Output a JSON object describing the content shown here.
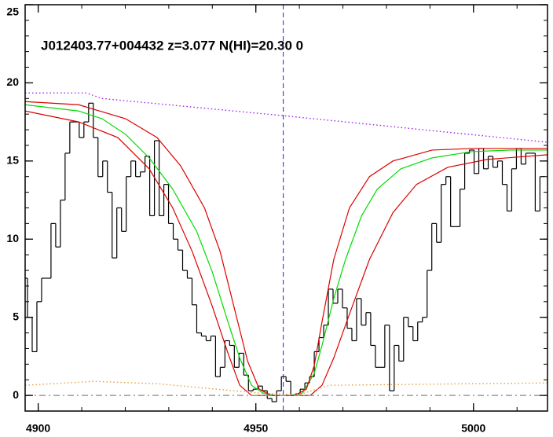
{
  "chart_data": {
    "type": "line",
    "title": "J012403.77+004432 z=3.077 N(HI)=20.30 0",
    "xlim": [
      4897,
      5017
    ],
    "ylim": [
      -1,
      25
    ],
    "xticks": [
      4900,
      4950,
      5000
    ],
    "yticks": [
      0,
      5,
      10,
      15,
      20,
      25
    ],
    "xticks_minor": [
      4900,
      4910,
      4920,
      4930,
      4940,
      4950,
      4960,
      4970,
      4980,
      4990,
      5000,
      5010
    ],
    "yticks_minor": [
      0,
      1,
      2,
      3,
      4,
      5,
      6,
      7,
      8,
      9,
      10,
      11,
      12,
      13,
      14,
      15,
      16,
      17,
      18,
      19,
      20,
      21,
      22,
      23,
      24,
      25
    ],
    "vline": {
      "x": 4956.3,
      "color": "#2020e0",
      "style": "dashed"
    },
    "series": [
      {
        "style": "step",
        "color": "#000000",
        "x": [
          4897,
          4898.08,
          4899.16,
          4900.24,
          4901.32,
          4902.4,
          4903.48,
          4904.56,
          4905.64,
          4906.72,
          4907.8,
          4908.88,
          4909.96,
          4911.04,
          4912.12,
          4913.2,
          4914.28,
          4915.36,
          4916.44,
          4917.52,
          4918.6,
          4919.68,
          4920.76,
          4921.84,
          4922.92,
          4924,
          4925.08,
          4926.16,
          4927.24,
          4928.32,
          4929.4,
          4930.48,
          4931.56,
          4932.64,
          4933.72,
          4934.8,
          4935.88,
          4936.96,
          4938.04,
          4939.12,
          4940.2,
          4941.28,
          4942.36,
          4943.44,
          4944.52,
          4945.6,
          4946.68,
          4947.76,
          4948.84,
          4949.92,
          4951,
          4952.08,
          4953.16,
          4954.24,
          4955.32,
          4956.4,
          4957.48,
          4958.56,
          4959.64,
          4960.72,
          4961.8,
          4962.88,
          4963.96,
          4965.04,
          4966.12,
          4967.2,
          4968.28,
          4969.36,
          4970.44,
          4971.52,
          4972.6,
          4973.68,
          4974.76,
          4975.84,
          4976.92,
          4978,
          4979.08,
          4980.16,
          4981.24,
          4982.32,
          4983.4,
          4984.48,
          4985.56,
          4986.64,
          4987.72,
          4988.8,
          4989.88,
          4990.96,
          4992.04,
          4993.12,
          4994.2,
          4995.28,
          4996.36,
          4997.44,
          4998.52,
          4999.6,
          5000.68,
          5001.76,
          5002.84,
          5003.92,
          5005,
          5006.08,
          5007.16,
          5008.24,
          5009.32,
          5010.4,
          5011.48,
          5012.56,
          5013.64,
          5014.72,
          5015.8
        ],
        "values": [
          7.5,
          5.0,
          2.8,
          6.0,
          7.5,
          7.5,
          11.0,
          9.5,
          12.5,
          15.5,
          17.5,
          17.5,
          16.5,
          17.5,
          18.7,
          16.5,
          14.0,
          15.0,
          13.0,
          8.8,
          12.0,
          10.5,
          14.0,
          15.0,
          14.0,
          14.3,
          15.3,
          11.5,
          16.3,
          11.5,
          13.5,
          11.0,
          10.0,
          9.3,
          8.0,
          7.5,
          5.8,
          4.0,
          3.8,
          3.5,
          3.8,
          1.2,
          1.8,
          3.5,
          3.2,
          1.8,
          2.7,
          1.3,
          0.3,
          0.4,
          0.6,
          0.3,
          -0.2,
          -0.4,
          0.3,
          1.2,
          0.9,
          0.0,
          0.1,
          0.4,
          0.8,
          1.2,
          2.8,
          3.7,
          4.5,
          6.8,
          5.9,
          6.8,
          5.6,
          4.3,
          3.5,
          6.2,
          4.5,
          5.3,
          3.2,
          1.8,
          1.8,
          4.5,
          0.3,
          3.2,
          2.2,
          5.0,
          4.4,
          3.5,
          4.7,
          5.0,
          8.0,
          11.0,
          9.8,
          13.5,
          14.0,
          10.8,
          10.8,
          13.2,
          15.5,
          15.7,
          14.2,
          15.8,
          14.5,
          15.3,
          14.6,
          15.0,
          13.5,
          11.8,
          14.5,
          15.8,
          14.8,
          15.5,
          15.5,
          11.8,
          14.0
        ]
      },
      {
        "style": "solid",
        "color": "#00dd00",
        "x": [
          4897,
          4909.3,
          4914.7,
          4920.1,
          4925.5,
          4930.9,
          4936.4,
          4940.0,
          4943.6,
          4946.3,
          4949.0,
          4951.7,
          4954.4,
          4958.0,
          4960.7,
          4963.4,
          4965.2,
          4967.9,
          4970.6,
          4974.3,
          4977.9,
          4983.3,
          4990.5,
          4999.5,
          5008.6,
          5017
        ],
        "values": [
          18.6,
          18.2,
          17.7,
          16.7,
          15.2,
          13.2,
          10.5,
          7.9,
          4.7,
          2.4,
          0.65,
          0.15,
          0,
          0,
          0.15,
          1.4,
          3.2,
          6.2,
          8.7,
          11.5,
          13.2,
          14.5,
          15.2,
          15.6,
          15.7,
          15.7
        ]
      },
      {
        "style": "solid",
        "color": "#dd0000",
        "x": [
          4897,
          4909.3,
          4920.1,
          4927.3,
          4932.7,
          4938.2,
          4941.8,
          4945.4,
          4948.1,
          4950.8,
          4953.5,
          4958.9,
          4961.6,
          4963.4,
          4965.2,
          4967.9,
          4971.5,
          4976.1,
          4981.5,
          4990.5,
          4999.5,
          5017
        ],
        "values": [
          18.8,
          18.6,
          17.7,
          16.5,
          14.7,
          12.0,
          9.2,
          5.2,
          2.2,
          0.4,
          0,
          0,
          0.4,
          1.9,
          4.7,
          8.7,
          12.0,
          14.0,
          15.0,
          15.7,
          15.8,
          15.8
        ]
      },
      {
        "style": "solid",
        "color": "#dd0000",
        "x": [
          4897,
          4909.3,
          4918.3,
          4925.5,
          4930.9,
          4935.4,
          4940.0,
          4943.6,
          4946.3,
          4949.0,
          4962.5,
          4965.2,
          4967.9,
          4971.5,
          4976.1,
          4981.5,
          4986.9,
          4994.1,
          5003.1,
          5017
        ],
        "values": [
          18.2,
          17.5,
          16.5,
          14.5,
          12.0,
          9.2,
          5.7,
          2.7,
          0.65,
          0,
          0,
          0.65,
          2.4,
          5.2,
          8.7,
          11.7,
          13.5,
          14.6,
          15.1,
          15.4
        ]
      },
      {
        "style": "dotted",
        "color": "#a020f0",
        "x": [
          4897,
          4911.1,
          4914.7,
          4956.3,
          5017
        ],
        "values": [
          19.35,
          19.35,
          19.0,
          17.9,
          16.2
        ]
      },
      {
        "style": "dotted",
        "color": "#e0a040",
        "x": [
          4897,
          4912.9,
          4927.3,
          4950.8,
          4959.8,
          4967.0,
          5017
        ],
        "values": [
          0.65,
          0.9,
          0.75,
          0.15,
          0.05,
          0.65,
          0.8
        ]
      },
      {
        "style": "dashdot",
        "color": "#999999",
        "x": [
          4897,
          5017
        ],
        "values": [
          0,
          0
        ]
      }
    ]
  }
}
